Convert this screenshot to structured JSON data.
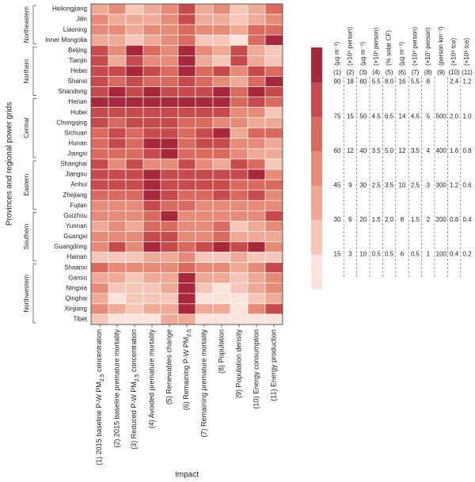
{
  "chart_data": {
    "type": "heatmap",
    "y_label": "Provinces and regional power grids",
    "x_label": "Impact",
    "colors": [
      "#fbe4dc",
      "#f6c7b8",
      "#efaa96",
      "#e58b78",
      "#d86b5e",
      "#c64b4c",
      "#a6283a"
    ],
    "columns": [
      "(1) 2015 baseline P-W PM2.5 concentration",
      "(2) 2015 baseline premature mortality",
      "(3) Reduced P-W PM2.5 concentration",
      "(4) Avoided premature mortality",
      "(5) Renewables change",
      "(6) Remaining P-W PM2.5",
      "(7) Remaining premature mortality",
      "(8) Population",
      "(9) Population density",
      "(10) Energy consumption",
      "(11) Energy production"
    ],
    "groups": [
      {
        "label": "Northeastern",
        "rows": [
          "Heilongjiang",
          "Jilin",
          "Liaoning",
          "Inner Mongolia"
        ],
        "z": [
          [
            37,
            10.5,
            15,
            2,
            4.2,
            15,
            2,
            3.5,
            150,
            1.0,
            0.9
          ],
          [
            52,
            7.5,
            25,
            2,
            4.2,
            15,
            2,
            2.5,
            150,
            1.0,
            0.7
          ],
          [
            52,
            10.5,
            25,
            3,
            4.2,
            13,
            3,
            3.5,
            250,
            1.8,
            0.9
          ],
          [
            37,
            7.5,
            15,
            2,
            4.2,
            13,
            1,
            1.5,
            50,
            1.8,
            1.3
          ]
        ]
      },
      {
        "label": "Northern",
        "rows": [
          "Beijing",
          "Tianjin",
          "Hebei",
          "Shanxi",
          "Shandong"
        ],
        "z": [
          [
            82,
            10.5,
            65,
            4,
            4.2,
            17,
            3,
            2.5,
            650,
            1.0,
            0.3
          ],
          [
            82,
            7.5,
            55,
            3,
            4.2,
            17,
            2,
            1.5,
            650,
            1.0,
            0.3
          ],
          [
            82,
            16.5,
            65,
            5,
            5.8,
            17,
            4,
            6.5,
            350,
            2.2,
            0.9
          ],
          [
            82,
            13.5,
            55,
            4,
            5.8,
            15,
            4,
            3.5,
            250,
            1.8,
            1.3
          ],
          [
            82,
            20,
            55,
            6,
            7.2,
            15,
            5,
            9,
            450,
            2.6,
            1.1
          ]
        ]
      },
      {
        "label": "Central",
        "rows": [
          "Henan",
          "Hubei",
          "Chongqing",
          "Sichuan",
          "Hunan",
          "Jiangxi"
        ],
        "z": [
          [
            95,
            20,
            65,
            6,
            8.5,
            17,
            6,
            9,
            450,
            2.2,
            0.9
          ],
          [
            82,
            16.5,
            55,
            5,
            7.2,
            15,
            5,
            6.5,
            350,
            1.4,
            0.3
          ],
          [
            82,
            13.5,
            55,
            5,
            7.2,
            13,
            4,
            3.5,
            350,
            1.0,
            0.5
          ],
          [
            67,
            16.5,
            45,
            5,
            7.2,
            13,
            5,
            9,
            250,
            1.8,
            0.9
          ],
          [
            67,
            16.5,
            45,
            6,
            8.5,
            13,
            5,
            6.5,
            350,
            1.4,
            0.5
          ],
          [
            67,
            13.5,
            45,
            5,
            8.5,
            13,
            4,
            4.5,
            350,
            1.0,
            0.5
          ]
        ]
      },
      {
        "label": "Eastern",
        "rows": [
          "Shanghai",
          "Jiangsu",
          "Anhui",
          "Zhejiang",
          "Fujian"
        ],
        "z": [
          [
            82,
            10.5,
            55,
            3,
            4.2,
            15,
            3,
            2.5,
            650,
            1.8,
            0.3
          ],
          [
            82,
            16.5,
            55,
            6,
            7.2,
            15,
            5,
            6.5,
            550,
            2.6,
            0.7
          ],
          [
            82,
            16.5,
            55,
            6,
            7.2,
            15,
            5,
            6.5,
            450,
            1.8,
            0.9
          ],
          [
            67,
            13.5,
            45,
            6,
            7.2,
            13,
            4,
            6.5,
            450,
            2.2,
            0.7
          ],
          [
            52,
            10.5,
            35,
            5,
            5.8,
            13,
            3,
            3.5,
            350,
            1.4,
            0.7
          ]
        ]
      },
      {
        "label": "Southern",
        "rows": [
          "Guizhou",
          "Yunnan",
          "Guangxi",
          "Guangdong",
          "Hainan"
        ],
        "z": [
          [
            52,
            10.5,
            35,
            4,
            8.5,
            11,
            3,
            3.5,
            350,
            1.4,
            1.1
          ],
          [
            37,
            10.5,
            25,
            4,
            5.8,
            11,
            3,
            4.5,
            150,
            1.0,
            0.7
          ],
          [
            52,
            10.5,
            35,
            5,
            7.2,
            11,
            3,
            4.5,
            250,
            1.0,
            0.5
          ],
          [
            52,
            16.5,
            35,
            6,
            7.2,
            13,
            5,
            9,
            550,
            2.6,
            0.7
          ],
          [
            22,
            4.5,
            15,
            2,
            2.8,
            11,
            1,
            1.5,
            250,
            0.6,
            0.3
          ]
        ]
      },
      {
        "label": "Northwestern",
        "rows": [
          "Shaanxi",
          "Gansu",
          "Ningxia",
          "Qinghai",
          "Xinjiang",
          "Tibet"
        ],
        "z": [
          [
            67,
            10.5,
            35,
            3,
            4.2,
            13,
            3,
            3.5,
            250,
            1.4,
            1.1
          ],
          [
            37,
            7.5,
            15,
            2,
            2.8,
            17,
            2,
            2.5,
            150,
            1.0,
            0.7
          ],
          [
            52,
            4.5,
            15,
            1,
            2.8,
            17,
            1,
            0.5,
            150,
            1.0,
            0.7
          ],
          [
            37,
            2,
            15,
            1,
            1.2,
            17,
            0.3,
            0.5,
            50,
            0.6,
            0.5
          ],
          [
            52,
            7.5,
            15,
            2,
            2.8,
            17,
            2,
            2.5,
            50,
            1.4,
            1.1
          ],
          [
            22,
            2,
            7,
            0.3,
            2.8,
            9,
            0.3,
            0.5,
            50,
            0.2,
            0.1
          ]
        ]
      }
    ],
    "scales": [
      {
        "number": "(1)",
        "unit": "(µg m⁻³)",
        "ticks": [
          15,
          30,
          45,
          60,
          75,
          90
        ]
      },
      {
        "number": "(2)",
        "unit": "(×10⁴ person)",
        "ticks": [
          3,
          6,
          9,
          12,
          15,
          18
        ]
      },
      {
        "number": "(3)",
        "unit": "(µg m⁻³)",
        "ticks": [
          10,
          20,
          30,
          40,
          50,
          60
        ]
      },
      {
        "number": "(4)",
        "unit": "(×10³ person)",
        "ticks": [
          0.5,
          1.5,
          2.5,
          3.5,
          4.5,
          5.5
        ]
      },
      {
        "number": "(5)",
        "unit": "(% solar CF)",
        "ticks": [
          0.5,
          {
            "value": 2,
            "label": "2.0"
          },
          3.5,
          {
            "value": 5,
            "label": "5.0"
          },
          6.5,
          {
            "value": 8,
            "label": "8.0"
          }
        ]
      },
      {
        "number": "(6)",
        "unit": "(µg m⁻³)",
        "ticks": [
          6,
          8,
          10,
          12,
          14,
          16
        ]
      },
      {
        "number": "(7)",
        "unit": "(×10⁴ person)",
        "ticks": [
          0.5,
          1.5,
          2.5,
          3.5,
          4.5,
          5.5
        ]
      },
      {
        "number": "(8)",
        "unit": "(×10⁷ person)",
        "ticks": [
          1,
          2,
          3,
          4,
          5,
          8
        ]
      },
      {
        "number": "(9)",
        "unit": "(person km⁻²)",
        "ticks": [
          100,
          200,
          300,
          400,
          500
        ]
      },
      {
        "number": "(10)",
        "unit": "(×10⁸ tce)",
        "ticks": [
          0.4,
          0.8,
          1.2,
          1.6,
          {
            "value": 2,
            "label": "2.0"
          },
          2.4
        ]
      },
      {
        "number": "(11)",
        "unit": "(×10⁸ tce)",
        "ticks": [
          0.2,
          0.4,
          0.6,
          0.8,
          {
            "value": 1,
            "label": "1.0"
          },
          1.2
        ]
      }
    ]
  }
}
